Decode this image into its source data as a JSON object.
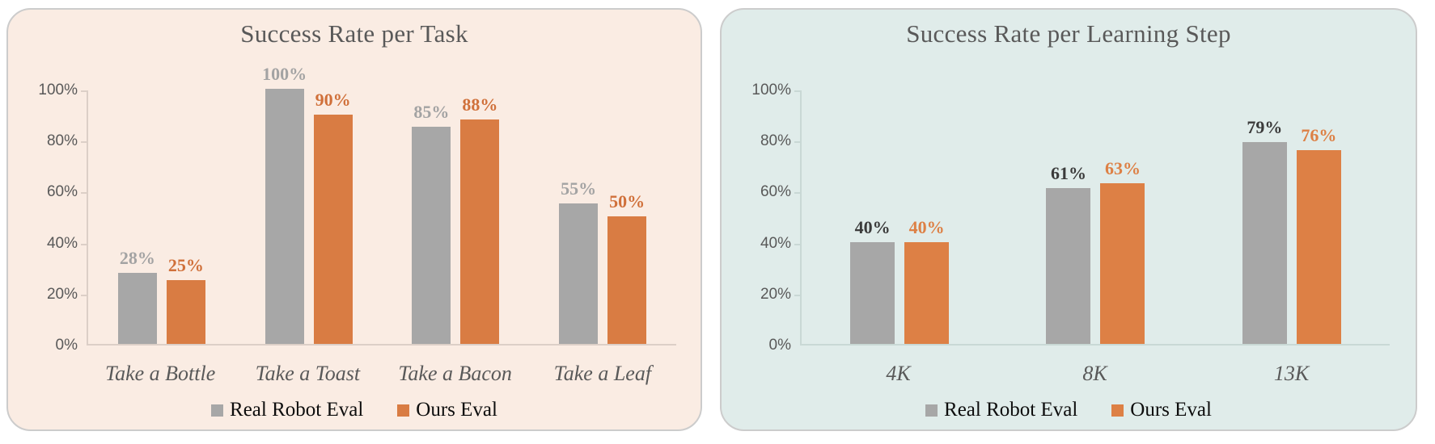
{
  "chart_data": [
    {
      "type": "bar",
      "title": "Success Rate per Task",
      "categories": [
        "Take a Bottle",
        "Take a Toast",
        "Take a Bacon",
        "Take a Leaf"
      ],
      "series": [
        {
          "name": "Real Robot Eval",
          "values": [
            28,
            100,
            85,
            55
          ],
          "color": "#A7A7A7",
          "label_color": "#A3A3A3"
        },
        {
          "name": "Ours Eval",
          "values": [
            25,
            90,
            88,
            50
          ],
          "color": "#D97C43",
          "label_color": "#D0703A"
        }
      ],
      "xlabel": "",
      "ylabel": "",
      "ylim": [
        0,
        100
      ],
      "y_ticks": [
        "0%",
        "20%",
        "40%",
        "60%",
        "80%",
        "100%"
      ],
      "data_label_format": "percent",
      "grid": "off",
      "legend_position": "bottom",
      "background": "#FAECE3",
      "axis_color": "#DCCFC7",
      "title_color": "#595959"
    },
    {
      "type": "bar",
      "title": "Success Rate per Learning Step",
      "categories": [
        "4K",
        "8K",
        "13K"
      ],
      "series": [
        {
          "name": "Real Robot Eval",
          "values": [
            40,
            61,
            79
          ],
          "color": "#A7A7A7",
          "label_color": "#3B3B3B"
        },
        {
          "name": "Ours Eval",
          "values": [
            40,
            63,
            76
          ],
          "color": "#DD8045",
          "label_color": "#DD8045"
        }
      ],
      "xlabel": "",
      "ylabel": "",
      "ylim": [
        0,
        100
      ],
      "y_ticks": [
        "0%",
        "20%",
        "40%",
        "60%",
        "80%",
        "100%"
      ],
      "data_label_format": "percent",
      "grid": "off",
      "legend_position": "bottom",
      "background": "#E0ECEA",
      "axis_color": "#C9D8D5",
      "title_color": "#595959"
    }
  ]
}
